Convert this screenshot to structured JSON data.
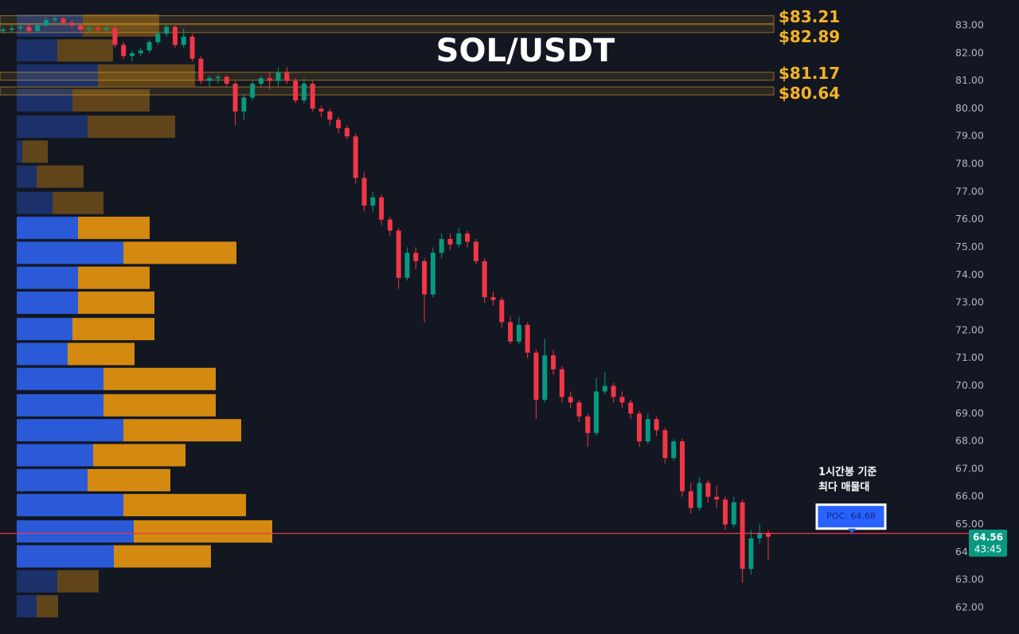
{
  "chart_data": {
    "type": "candlestick",
    "title": "SOL/USDT",
    "colors": {
      "up": "#089981",
      "down": "#f23645"
    },
    "ylim": [
      61.05,
      83.92
    ],
    "yticks": [
      {
        "value": 62,
        "label": "62.00"
      },
      {
        "value": 63,
        "label": "63.00"
      },
      {
        "value": 64,
        "label": "64.00"
      },
      {
        "value": 65,
        "label": "65.00"
      },
      {
        "value": 66,
        "label": "66.00"
      },
      {
        "value": 67,
        "label": "67.00"
      },
      {
        "value": 68,
        "label": "68.00"
      },
      {
        "value": 69,
        "label": "69.00"
      },
      {
        "value": 70,
        "label": "70.00"
      },
      {
        "value": 71,
        "label": "71.00"
      },
      {
        "value": 72,
        "label": "72.00"
      },
      {
        "value": 73,
        "label": "73.00"
      },
      {
        "value": 74,
        "label": "74.00"
      },
      {
        "value": 75,
        "label": "75.00"
      },
      {
        "value": 76,
        "label": "76.00"
      },
      {
        "value": 77,
        "label": "77.00"
      },
      {
        "value": 78,
        "label": "78.00"
      },
      {
        "value": 79,
        "label": "79.00"
      },
      {
        "value": 80,
        "label": "80.00"
      },
      {
        "value": 81,
        "label": "81.00"
      },
      {
        "value": 82,
        "label": "82.00"
      },
      {
        "value": 83,
        "label": "83.00"
      }
    ],
    "ohlc": [
      [
        82.8,
        82.95,
        82.7,
        82.85
      ],
      [
        82.85,
        83.0,
        82.75,
        82.9
      ],
      [
        82.9,
        83.05,
        82.8,
        82.95
      ],
      [
        82.95,
        83.05,
        82.7,
        82.8
      ],
      [
        82.8,
        83.1,
        82.75,
        83.0
      ],
      [
        83.0,
        83.3,
        82.95,
        83.2
      ],
      [
        83.2,
        83.35,
        83.1,
        83.25
      ],
      [
        83.25,
        83.3,
        83.0,
        83.1
      ],
      [
        83.1,
        83.2,
        82.9,
        83.0
      ],
      [
        83.0,
        83.1,
        82.7,
        82.85
      ],
      [
        82.85,
        83.0,
        82.75,
        82.9
      ],
      [
        82.9,
        83.0,
        82.75,
        82.85
      ],
      [
        82.85,
        83.0,
        82.8,
        82.9
      ],
      [
        82.9,
        82.95,
        82.2,
        82.3
      ],
      [
        82.3,
        82.4,
        81.8,
        81.9
      ],
      [
        81.9,
        82.1,
        81.7,
        82.0
      ],
      [
        82.0,
        82.2,
        81.9,
        82.1
      ],
      [
        82.1,
        82.5,
        82.0,
        82.4
      ],
      [
        82.4,
        82.8,
        82.3,
        82.7
      ],
      [
        82.7,
        83.05,
        82.6,
        82.95
      ],
      [
        82.95,
        83.0,
        82.2,
        82.3
      ],
      [
        82.3,
        82.9,
        82.2,
        82.6
      ],
      [
        82.6,
        82.7,
        81.7,
        81.8
      ],
      [
        81.8,
        81.9,
        80.9,
        81.0
      ],
      [
        81.0,
        81.2,
        80.8,
        81.1
      ],
      [
        81.1,
        81.25,
        80.9,
        81.15
      ],
      [
        81.15,
        81.2,
        80.8,
        80.9
      ],
      [
        80.9,
        81.0,
        79.4,
        79.9
      ],
      [
        79.9,
        80.5,
        79.6,
        80.4
      ],
      [
        80.4,
        81.0,
        80.3,
        80.9
      ],
      [
        80.9,
        81.2,
        80.8,
        81.1
      ],
      [
        81.1,
        81.3,
        80.7,
        81.0
      ],
      [
        81.0,
        81.5,
        80.8,
        81.3
      ],
      [
        81.3,
        81.5,
        80.9,
        81.0
      ],
      [
        81.0,
        81.1,
        80.2,
        80.3
      ],
      [
        80.3,
        81.1,
        80.2,
        80.9
      ],
      [
        80.9,
        81.0,
        79.9,
        80.0
      ],
      [
        80.0,
        80.1,
        79.7,
        79.9
      ],
      [
        79.9,
        80.0,
        79.4,
        79.6
      ],
      [
        79.6,
        79.7,
        79.1,
        79.3
      ],
      [
        79.3,
        79.4,
        78.9,
        79.0
      ],
      [
        79.0,
        79.1,
        77.3,
        77.5
      ],
      [
        77.5,
        77.7,
        76.3,
        76.5
      ],
      [
        76.5,
        77.0,
        76.3,
        76.8
      ],
      [
        76.8,
        76.9,
        75.8,
        76.0
      ],
      [
        76.0,
        76.1,
        75.4,
        75.6
      ],
      [
        75.6,
        75.7,
        73.5,
        73.9
      ],
      [
        73.9,
        75.0,
        73.8,
        74.8
      ],
      [
        74.8,
        75.0,
        74.2,
        74.5
      ],
      [
        74.5,
        74.6,
        72.3,
        73.3
      ],
      [
        73.3,
        75.0,
        73.2,
        74.8
      ],
      [
        74.8,
        75.5,
        74.6,
        75.3
      ],
      [
        75.3,
        75.5,
        74.9,
        75.1
      ],
      [
        75.1,
        75.7,
        75.0,
        75.5
      ],
      [
        75.5,
        75.6,
        75.0,
        75.2
      ],
      [
        75.2,
        75.3,
        74.4,
        74.5
      ],
      [
        74.5,
        74.6,
        73.0,
        73.2
      ],
      [
        73.2,
        73.4,
        72.9,
        73.1
      ],
      [
        73.1,
        73.2,
        72.1,
        72.3
      ],
      [
        72.3,
        72.5,
        71.5,
        71.6
      ],
      [
        71.6,
        72.5,
        71.5,
        72.2
      ],
      [
        72.2,
        72.3,
        71.0,
        71.2
      ],
      [
        71.2,
        71.3,
        68.8,
        69.5
      ],
      [
        69.5,
        71.7,
        69.4,
        71.1
      ],
      [
        71.1,
        71.3,
        70.4,
        70.6
      ],
      [
        70.6,
        70.7,
        69.4,
        69.6
      ],
      [
        69.6,
        69.8,
        69.2,
        69.4
      ],
      [
        69.4,
        69.5,
        68.7,
        68.9
      ],
      [
        68.9,
        69.0,
        67.8,
        68.3
      ],
      [
        68.3,
        70.3,
        68.2,
        69.8
      ],
      [
        69.8,
        70.5,
        69.7,
        70.0
      ],
      [
        70.0,
        70.1,
        69.4,
        69.6
      ],
      [
        69.6,
        69.8,
        69.2,
        69.4
      ],
      [
        69.4,
        69.5,
        68.8,
        69.0
      ],
      [
        69.0,
        69.1,
        67.8,
        68.0
      ],
      [
        68.0,
        69.0,
        67.9,
        68.8
      ],
      [
        68.8,
        68.9,
        68.2,
        68.4
      ],
      [
        68.4,
        68.5,
        67.2,
        67.4
      ],
      [
        67.4,
        68.1,
        67.3,
        68.0
      ],
      [
        68.0,
        68.1,
        66.0,
        66.2
      ],
      [
        66.2,
        66.5,
        65.4,
        65.6
      ],
      [
        65.6,
        66.7,
        65.5,
        66.5
      ],
      [
        66.5,
        66.6,
        65.8,
        66.0
      ],
      [
        66.0,
        66.4,
        65.6,
        65.9
      ],
      [
        65.9,
        66.0,
        64.8,
        65.0
      ],
      [
        65.0,
        66.0,
        64.9,
        65.8
      ],
      [
        65.8,
        65.9,
        62.9,
        63.4
      ],
      [
        63.4,
        64.8,
        63.2,
        64.5
      ],
      [
        64.5,
        65.0,
        64.3,
        64.7
      ],
      [
        64.7,
        64.8,
        63.7,
        64.56
      ]
    ],
    "levels": {
      "values": [
        83.21,
        82.89,
        81.17,
        80.64
      ],
      "value_labels": [
        "$83.21",
        "$82.89",
        "$81.17",
        "$80.64"
      ],
      "color": "#f5b324"
    },
    "volume_profile": {
      "price_levels": [
        83.0,
        82.1,
        81.2,
        80.3,
        79.35,
        78.45,
        77.55,
        76.6,
        75.7,
        74.8,
        73.9,
        73.0,
        72.05,
        71.15,
        70.25,
        69.3,
        68.4,
        67.5,
        66.6,
        65.7,
        64.75,
        63.85,
        62.95,
        62.05
      ],
      "buy": [
        83,
        51,
        102,
        70,
        89,
        7,
        25,
        45,
        77,
        134,
        77,
        77,
        70,
        64,
        109,
        109,
        134,
        96,
        89,
        134,
        147,
        122,
        51,
        25
      ],
      "sell": [
        96,
        70,
        122,
        97,
        110,
        32,
        59,
        64,
        90,
        142,
        90,
        96,
        103,
        84,
        141,
        141,
        148,
        116,
        104,
        154,
        174,
        122,
        52,
        27
      ],
      "buy_color": "#2a5ad8",
      "sell_color": "#d48a10",
      "value_area": [
        63.4,
        76.1
      ]
    },
    "poc": {
      "value": 64.68,
      "label": "POC: 64.68",
      "note": [
        "1시간봉 기준",
        "최다 매물대"
      ],
      "color": "#f23645"
    },
    "last_price": 64.56,
    "countdown": "43:45"
  }
}
